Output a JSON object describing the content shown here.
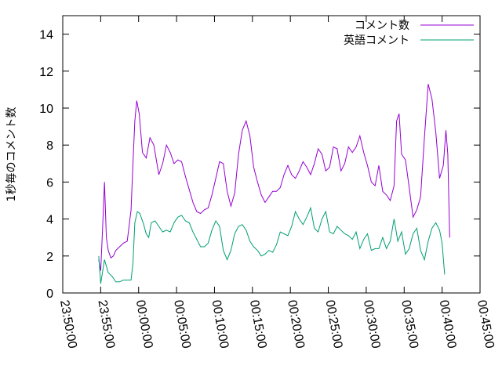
{
  "chart_data": {
    "type": "line",
    "title": "",
    "xlabel": "",
    "ylabel": "1秒毎のコメント数",
    "ylim": [
      0,
      15
    ],
    "yticks": [
      0,
      2,
      4,
      6,
      8,
      10,
      12,
      14
    ],
    "xlim": [
      "23:50:00",
      "00:45:00"
    ],
    "xticks": [
      "23:50:00",
      "23:55:00",
      "00:00:00",
      "00:05:00",
      "00:10:00",
      "00:15:00",
      "00:20:00",
      "00:25:00",
      "00:30:00",
      "00:35:00",
      "00:40:00",
      "00:45:00"
    ],
    "grid": false,
    "legend_position": "top-right",
    "series": [
      {
        "name": "コメント数",
        "color": "#9400d3",
        "points": [
          [
            "23:54:45",
            1.8
          ],
          [
            "23:55:00",
            1.2
          ],
          [
            "23:55:15",
            3.5
          ],
          [
            "23:55:30",
            6.0
          ],
          [
            "23:55:45",
            3.0
          ],
          [
            "23:56:00",
            2.3
          ],
          [
            "23:56:20",
            1.9
          ],
          [
            "23:56:40",
            2.0
          ],
          [
            "23:57:00",
            2.3
          ],
          [
            "23:57:30",
            2.5
          ],
          [
            "23:58:00",
            2.7
          ],
          [
            "23:58:30",
            2.8
          ],
          [
            "23:59:00",
            4.5
          ],
          [
            "23:59:15",
            7.0
          ],
          [
            "23:59:30",
            9.3
          ],
          [
            "23:59:45",
            10.4
          ],
          [
            "00:00:05",
            9.7
          ],
          [
            "00:00:30",
            7.6
          ],
          [
            "00:01:00",
            7.3
          ],
          [
            "00:01:30",
            8.4
          ],
          [
            "00:02:00",
            8.0
          ],
          [
            "00:02:40",
            6.4
          ],
          [
            "00:03:10",
            7.0
          ],
          [
            "00:03:40",
            8.0
          ],
          [
            "00:04:10",
            7.6
          ],
          [
            "00:04:40",
            7.0
          ],
          [
            "00:05:10",
            7.2
          ],
          [
            "00:05:40",
            7.1
          ],
          [
            "00:06:10",
            6.3
          ],
          [
            "00:06:40",
            5.6
          ],
          [
            "00:07:10",
            4.9
          ],
          [
            "00:07:40",
            4.4
          ],
          [
            "00:08:10",
            4.3
          ],
          [
            "00:08:40",
            4.5
          ],
          [
            "00:09:10",
            4.6
          ],
          [
            "00:09:40",
            5.3
          ],
          [
            "00:10:10",
            6.2
          ],
          [
            "00:10:40",
            7.1
          ],
          [
            "00:11:10",
            7.0
          ],
          [
            "00:11:40",
            5.5
          ],
          [
            "00:12:10",
            4.7
          ],
          [
            "00:12:40",
            5.4
          ],
          [
            "00:13:10",
            7.5
          ],
          [
            "00:13:40",
            8.8
          ],
          [
            "00:14:10",
            9.3
          ],
          [
            "00:14:40",
            8.5
          ],
          [
            "00:15:10",
            6.8
          ],
          [
            "00:15:40",
            6.0
          ],
          [
            "00:16:10",
            5.3
          ],
          [
            "00:16:40",
            4.9
          ],
          [
            "00:17:10",
            5.2
          ],
          [
            "00:17:40",
            5.5
          ],
          [
            "00:18:10",
            5.5
          ],
          [
            "00:18:40",
            5.7
          ],
          [
            "00:19:10",
            6.4
          ],
          [
            "00:19:40",
            6.9
          ],
          [
            "00:20:10",
            6.4
          ],
          [
            "00:20:40",
            6.2
          ],
          [
            "00:21:10",
            6.6
          ],
          [
            "00:21:40",
            7.1
          ],
          [
            "00:22:10",
            6.8
          ],
          [
            "00:22:40",
            6.4
          ],
          [
            "00:23:10",
            7.0
          ],
          [
            "00:23:40",
            7.8
          ],
          [
            "00:24:10",
            7.5
          ],
          [
            "00:24:40",
            6.6
          ],
          [
            "00:25:10",
            6.8
          ],
          [
            "00:25:40",
            7.9
          ],
          [
            "00:26:10",
            7.8
          ],
          [
            "00:26:40",
            6.6
          ],
          [
            "00:27:10",
            7.0
          ],
          [
            "00:27:40",
            7.9
          ],
          [
            "00:28:10",
            7.6
          ],
          [
            "00:28:40",
            7.9
          ],
          [
            "00:29:10",
            8.5
          ],
          [
            "00:29:40",
            7.6
          ],
          [
            "00:30:10",
            6.9
          ],
          [
            "00:30:40",
            6.0
          ],
          [
            "00:31:10",
            5.8
          ],
          [
            "00:31:40",
            6.9
          ],
          [
            "00:32:10",
            5.5
          ],
          [
            "00:32:40",
            5.3
          ],
          [
            "00:33:10",
            5.0
          ],
          [
            "00:33:40",
            5.8
          ],
          [
            "00:34:00",
            9.3
          ],
          [
            "00:34:20",
            9.7
          ],
          [
            "00:34:40",
            7.5
          ],
          [
            "00:35:10",
            7.2
          ],
          [
            "00:35:40",
            5.7
          ],
          [
            "00:36:10",
            4.1
          ],
          [
            "00:36:40",
            4.5
          ],
          [
            "00:37:10",
            5.2
          ],
          [
            "00:37:40",
            8.4
          ],
          [
            "00:38:10",
            11.3
          ],
          [
            "00:38:40",
            10.5
          ],
          [
            "00:39:10",
            8.7
          ],
          [
            "00:39:40",
            6.2
          ],
          [
            "00:40:10",
            6.9
          ],
          [
            "00:40:30",
            8.8
          ],
          [
            "00:40:45",
            7.5
          ],
          [
            "00:41:00",
            3.0
          ]
        ]
      },
      {
        "name": "英語コメント",
        "color": "#009e73",
        "points": [
          [
            "23:54:45",
            2.0
          ],
          [
            "23:55:00",
            0.5
          ],
          [
            "23:55:30",
            1.8
          ],
          [
            "23:56:00",
            1.1
          ],
          [
            "23:56:30",
            0.9
          ],
          [
            "23:57:00",
            0.6
          ],
          [
            "23:57:30",
            0.6
          ],
          [
            "23:58:00",
            0.7
          ],
          [
            "23:58:30",
            0.7
          ],
          [
            "23:59:00",
            0.7
          ],
          [
            "23:59:15",
            1.6
          ],
          [
            "23:59:30",
            3.8
          ],
          [
            "23:59:50",
            4.4
          ],
          [
            "00:00:10",
            4.3
          ],
          [
            "00:00:40",
            3.7
          ],
          [
            "00:01:00",
            3.2
          ],
          [
            "00:01:20",
            3.0
          ],
          [
            "00:01:40",
            3.8
          ],
          [
            "00:02:10",
            3.9
          ],
          [
            "00:02:40",
            3.6
          ],
          [
            "00:03:10",
            3.3
          ],
          [
            "00:03:40",
            3.4
          ],
          [
            "00:04:10",
            3.3
          ],
          [
            "00:04:40",
            3.8
          ],
          [
            "00:05:10",
            4.1
          ],
          [
            "00:05:40",
            4.2
          ],
          [
            "00:06:10",
            3.9
          ],
          [
            "00:06:40",
            3.8
          ],
          [
            "00:07:10",
            3.3
          ],
          [
            "00:07:40",
            2.9
          ],
          [
            "00:08:10",
            2.5
          ],
          [
            "00:08:40",
            2.5
          ],
          [
            "00:09:10",
            2.7
          ],
          [
            "00:09:40",
            3.4
          ],
          [
            "00:10:10",
            3.9
          ],
          [
            "00:10:40",
            3.6
          ],
          [
            "00:11:10",
            2.3
          ],
          [
            "00:11:40",
            1.8
          ],
          [
            "00:12:10",
            2.3
          ],
          [
            "00:12:40",
            3.2
          ],
          [
            "00:13:10",
            3.6
          ],
          [
            "00:13:40",
            3.7
          ],
          [
            "00:14:10",
            3.4
          ],
          [
            "00:14:40",
            2.8
          ],
          [
            "00:15:10",
            2.5
          ],
          [
            "00:15:40",
            2.3
          ],
          [
            "00:16:10",
            2.0
          ],
          [
            "00:16:40",
            2.1
          ],
          [
            "00:17:10",
            2.3
          ],
          [
            "00:17:40",
            2.2
          ],
          [
            "00:18:10",
            2.6
          ],
          [
            "00:18:40",
            3.3
          ],
          [
            "00:19:10",
            3.2
          ],
          [
            "00:19:40",
            3.1
          ],
          [
            "00:20:10",
            3.6
          ],
          [
            "00:20:40",
            4.4
          ],
          [
            "00:21:10",
            4.0
          ],
          [
            "00:21:40",
            3.7
          ],
          [
            "00:22:10",
            4.1
          ],
          [
            "00:22:40",
            4.6
          ],
          [
            "00:23:10",
            3.5
          ],
          [
            "00:23:40",
            3.3
          ],
          [
            "00:24:10",
            4.0
          ],
          [
            "00:24:40",
            4.4
          ],
          [
            "00:25:10",
            3.3
          ],
          [
            "00:25:40",
            3.2
          ],
          [
            "00:26:10",
            3.6
          ],
          [
            "00:26:40",
            3.4
          ],
          [
            "00:27:10",
            3.2
          ],
          [
            "00:27:40",
            3.1
          ],
          [
            "00:28:10",
            2.9
          ],
          [
            "00:28:40",
            3.3
          ],
          [
            "00:29:10",
            2.4
          ],
          [
            "00:29:40",
            2.9
          ],
          [
            "00:30:10",
            3.2
          ],
          [
            "00:30:40",
            2.3
          ],
          [
            "00:31:10",
            2.4
          ],
          [
            "00:31:40",
            2.4
          ],
          [
            "00:32:10",
            3.0
          ],
          [
            "00:32:40",
            2.4
          ],
          [
            "00:33:10",
            2.8
          ],
          [
            "00:33:40",
            4.0
          ],
          [
            "00:34:10",
            2.8
          ],
          [
            "00:34:40",
            3.3
          ],
          [
            "00:35:10",
            2.1
          ],
          [
            "00:35:40",
            2.4
          ],
          [
            "00:36:10",
            3.2
          ],
          [
            "00:36:40",
            3.5
          ],
          [
            "00:37:10",
            2.3
          ],
          [
            "00:37:40",
            1.8
          ],
          [
            "00:38:10",
            2.8
          ],
          [
            "00:38:40",
            3.5
          ],
          [
            "00:39:10",
            3.8
          ],
          [
            "00:39:40",
            3.4
          ],
          [
            "00:40:00",
            2.7
          ],
          [
            "00:40:20",
            1.0
          ]
        ]
      }
    ]
  }
}
